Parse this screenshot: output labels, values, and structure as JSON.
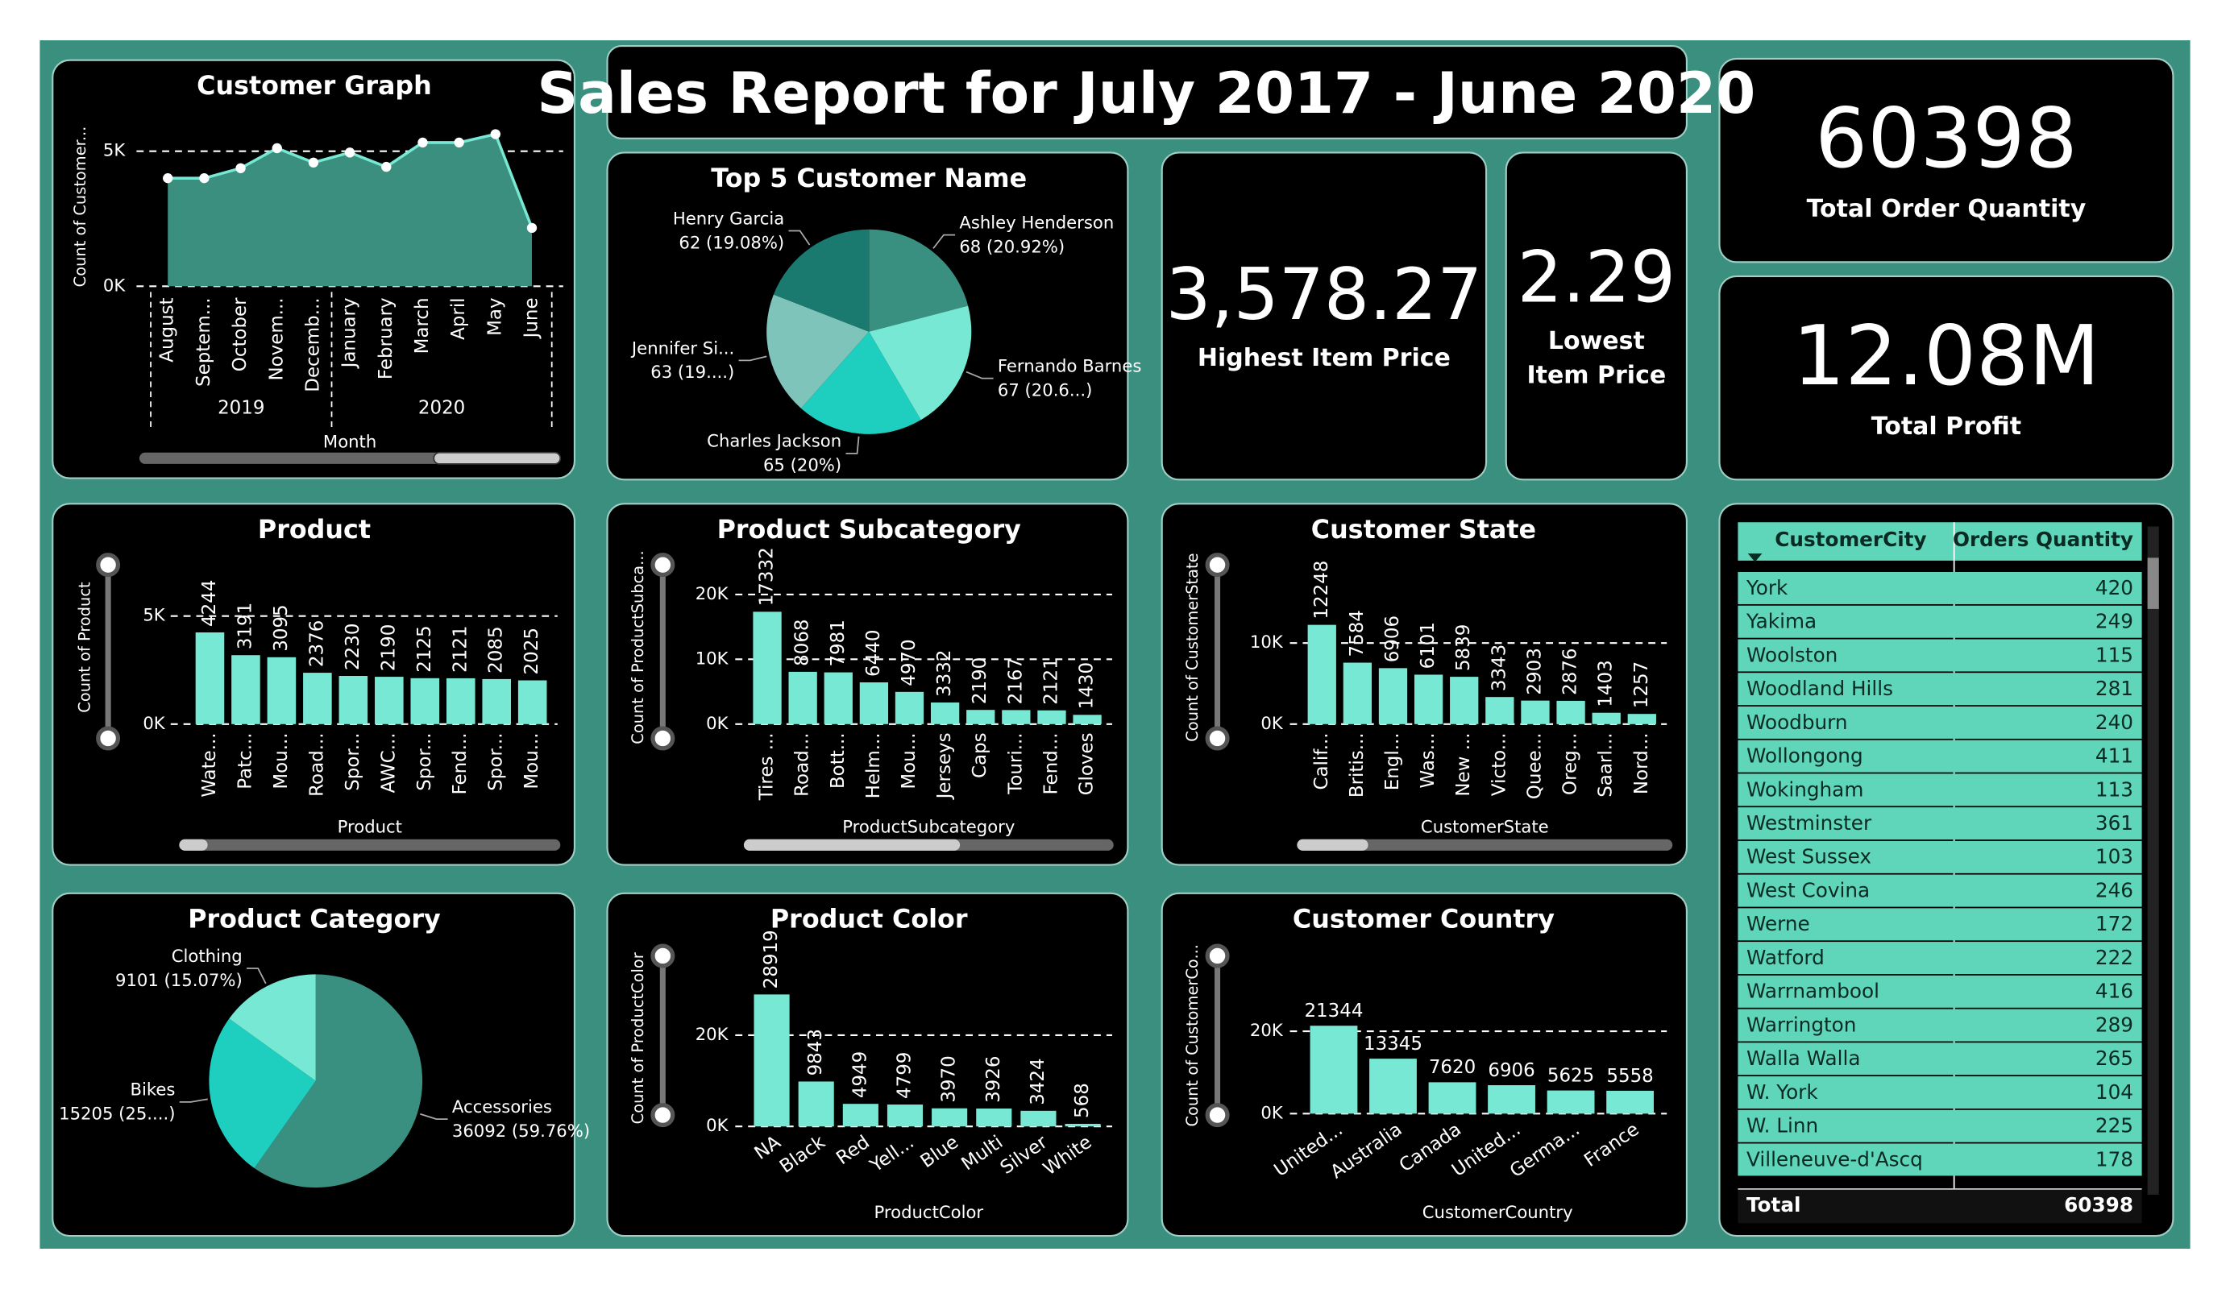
{
  "title": "Sales Report for July 2017 - June 2020",
  "cards": [
    {
      "value": "3,578.27",
      "label": "Highest Item Price"
    },
    {
      "value": "2.29",
      "label": "Lowest Item Price"
    },
    {
      "value": "60398",
      "label": "Total Order Quantity"
    },
    {
      "value": "12.08M",
      "label": "Total Profit"
    }
  ],
  "chart_data": [
    {
      "type": "area",
      "title": "Customer Graph",
      "y_label": "Count of Customer...",
      "x_label": "Month",
      "categories": [
        "August",
        "Septem...",
        "October",
        "Novem...",
        "Decemb...",
        "January",
        "February",
        "March",
        "April",
        "May",
        "June"
      ],
      "years": [
        "2019",
        "2020"
      ],
      "values": [
        4000,
        4000,
        4370,
        5110,
        4580,
        4950,
        4420,
        5320,
        5320,
        5630,
        2160
      ],
      "color": "#77e8d3",
      "fill": "#3a8f7e",
      "ylim": [
        0,
        6000
      ],
      "yticks": [
        {
          "value": 0,
          "label": "0K"
        },
        {
          "value": 5000,
          "label": "5K"
        }
      ]
    },
    {
      "type": "pie",
      "title": "Top 5 Customer Name",
      "categories": [
        "Ashley Henderson",
        "Fernando Barnes",
        "Charles Jackson",
        "Jennifer Si...",
        "Henry Garcia"
      ],
      "values": [
        68,
        67,
        65,
        63,
        62
      ],
      "value_labels": [
        "68 (20.92%)",
        "67 (20.6...)",
        "65 (20%)",
        "63 (19....)",
        "62 (19.08%)"
      ],
      "colors": [
        "#3a9080",
        "#77e8d3",
        "#1ecfc0",
        "#7fc4bb",
        "#1a7a70"
      ]
    },
    {
      "type": "bar",
      "title": "Product",
      "y_label": "Count of Product",
      "x_label": "Product",
      "categories": [
        "Wate...",
        "Patc...",
        "Mou...",
        "Road...",
        "Spor...",
        "AWC...",
        "Spor...",
        "Fend...",
        "Spor...",
        "Mou..."
      ],
      "values": [
        4244,
        3191,
        3095,
        2376,
        2230,
        2190,
        2125,
        2121,
        2085,
        2025
      ],
      "color": "#77e8d3",
      "ylim": [
        0,
        7500
      ],
      "yticks": [
        {
          "value": 0,
          "label": "0K"
        },
        {
          "value": 5000,
          "label": "5K"
        }
      ]
    },
    {
      "type": "bar",
      "title": "Product Subcategory",
      "y_label": "Count of ProductSubca...",
      "x_label": "ProductSubcategory",
      "categories": [
        "Tires ...",
        "Road...",
        "Bott...",
        "Helm...",
        "Mou...",
        "Jerseys",
        "Caps",
        "Touri...",
        "Fend...",
        "Gloves"
      ],
      "values": [
        17332,
        8068,
        7981,
        6440,
        4970,
        3332,
        2190,
        2167,
        2121,
        1430
      ],
      "color": "#77e8d3",
      "ylim": [
        0,
        25000
      ],
      "yticks": [
        {
          "value": 0,
          "label": "0K"
        },
        {
          "value": 10000,
          "label": "10K"
        },
        {
          "value": 20000,
          "label": "20K"
        }
      ]
    },
    {
      "type": "bar",
      "title": "Customer State",
      "y_label": "Count of CustomerState",
      "x_label": "CustomerState",
      "categories": [
        "Calif...",
        "Britis...",
        "Engl...",
        "Was...",
        "New ...",
        "Victo...",
        "Quee...",
        "Oreg...",
        "Saarl...",
        "Nord..."
      ],
      "values": [
        12248,
        7584,
        6906,
        6101,
        5839,
        3343,
        2903,
        2876,
        1403,
        1257
      ],
      "color": "#77e8d3",
      "ylim": [
        0,
        20000
      ],
      "yticks": [
        {
          "value": 0,
          "label": "0K"
        },
        {
          "value": 10000,
          "label": "10K"
        }
      ]
    },
    {
      "type": "pie",
      "title": "Product Category",
      "categories": [
        "Accessories",
        "Bikes",
        "Clothing"
      ],
      "values": [
        36092,
        15205,
        9101
      ],
      "value_labels": [
        "36092 (59.76%)",
        "15205 (25....)",
        "9101 (15.07%)"
      ],
      "colors": [
        "#3a9080",
        "#1ecfc0",
        "#77e8d3"
      ]
    },
    {
      "type": "bar",
      "title": "Product Color",
      "y_label": "Count of ProductColor",
      "x_label": "ProductColor",
      "categories": [
        "NA",
        "Black",
        "Red",
        "Yell...",
        "Blue",
        "Multi",
        "Silver",
        "White"
      ],
      "values": [
        28919,
        9843,
        4949,
        4799,
        3970,
        3926,
        3424,
        568
      ],
      "color": "#77e8d3",
      "ylim": [
        0,
        38000
      ],
      "yticks": [
        {
          "value": 0,
          "label": "0K"
        },
        {
          "value": 20000,
          "label": "20K"
        }
      ]
    },
    {
      "type": "bar",
      "title": "Customer Country",
      "y_label": "Count of CustomerCo...",
      "x_label": "CustomerCountry",
      "categories": [
        "United...",
        "Australia",
        "Canada",
        "United...",
        "Germa...",
        "France"
      ],
      "values": [
        21344,
        13345,
        7620,
        6906,
        5625,
        5558
      ],
      "color": "#77e8d3",
      "ylim": [
        0,
        39000
      ],
      "yticks": [
        {
          "value": 0,
          "label": "0K"
        },
        {
          "value": 20000,
          "label": "20K"
        }
      ]
    }
  ],
  "table": {
    "columns": [
      "CustomerCity",
      "Orders Quantity"
    ],
    "rows": [
      [
        "York",
        420
      ],
      [
        "Yakima",
        249
      ],
      [
        "Woolston",
        115
      ],
      [
        "Woodland Hills",
        281
      ],
      [
        "Woodburn",
        240
      ],
      [
        "Wollongong",
        411
      ],
      [
        "Wokingham",
        113
      ],
      [
        "Westminster",
        361
      ],
      [
        "West Sussex",
        103
      ],
      [
        "West Covina",
        246
      ],
      [
        "Werne",
        172
      ],
      [
        "Watford",
        222
      ],
      [
        "Warrnambool",
        416
      ],
      [
        "Warrington",
        289
      ],
      [
        "Walla Walla",
        265
      ],
      [
        "W. York",
        104
      ],
      [
        "W. Linn",
        225
      ],
      [
        "Villeneuve-d'Ascq",
        178
      ]
    ],
    "total": [
      "Total",
      60398
    ]
  }
}
